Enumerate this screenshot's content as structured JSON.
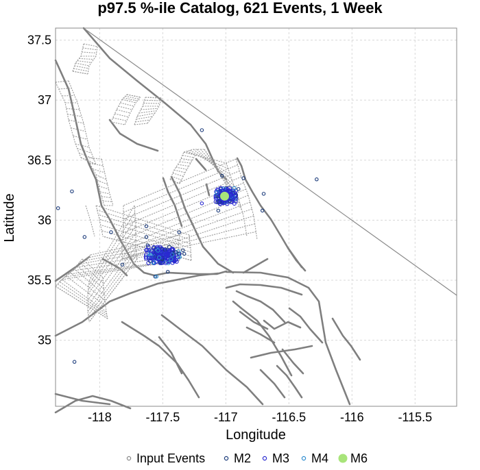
{
  "chart_data": {
    "type": "scatter",
    "title": "p97.5 %-ile Catalog, 621 Events, 1 Week",
    "xlabel": "Longitude",
    "ylabel": "Latitude",
    "xlim": [
      -118.35,
      -115.17
    ],
    "ylim": [
      34.45,
      37.6
    ],
    "x_ticks": [
      -118,
      -117.5,
      -117,
      -116.5,
      -116,
      -115.5
    ],
    "x_tick_labels": [
      "-118",
      "-117.5",
      "-117",
      "-116.5",
      "-116",
      "-115.5"
    ],
    "y_ticks": [
      35,
      35.5,
      36,
      36.5,
      37,
      37.5
    ],
    "y_tick_labels": [
      "35",
      "35.5",
      "36",
      "36.5",
      "37",
      "37.5"
    ],
    "grid": true,
    "legend_position": "bottom",
    "legend": [
      {
        "name": "Input Events",
        "color": "#888888",
        "style": "hollow"
      },
      {
        "name": "M2",
        "color": "#1a3a7a",
        "style": "hollow"
      },
      {
        "name": "M3",
        "color": "#2a2ad0",
        "style": "hollow"
      },
      {
        "name": "M4",
        "color": "#2e8ccf",
        "style": "hollow"
      },
      {
        "name": "M6",
        "color": "#a8e47a",
        "style": "filled"
      }
    ],
    "clusters": [
      {
        "name": "M3",
        "center": [
          -117.5,
          35.71
        ],
        "spread": [
          0.1,
          0.05
        ],
        "count": 260
      },
      {
        "name": "M3",
        "center": [
          -117.0,
          36.2
        ],
        "spread": [
          0.06,
          0.05
        ],
        "count": 220
      }
    ],
    "events": [
      {
        "series": "M6",
        "x": -117.01,
        "y": 36.2
      },
      {
        "series": "M2",
        "x": -118.22,
        "y": 36.24
      },
      {
        "series": "M2",
        "x": -118.33,
        "y": 36.1
      },
      {
        "series": "M2",
        "x": -118.12,
        "y": 35.86
      },
      {
        "series": "M2",
        "x": -117.91,
        "y": 35.9
      },
      {
        "series": "M2",
        "x": -117.82,
        "y": 35.63
      },
      {
        "series": "M2",
        "x": -117.63,
        "y": 35.95
      },
      {
        "series": "M2",
        "x": -117.63,
        "y": 35.86
      },
      {
        "series": "M2",
        "x": -117.62,
        "y": 35.79
      },
      {
        "series": "M2",
        "x": -117.37,
        "y": 35.9
      },
      {
        "series": "M2",
        "x": -117.19,
        "y": 36.75
      },
      {
        "series": "M2",
        "x": -117.03,
        "y": 36.37
      },
      {
        "series": "M2",
        "x": -116.86,
        "y": 36.35
      },
      {
        "series": "M2",
        "x": -116.7,
        "y": 36.22
      },
      {
        "series": "M2",
        "x": -116.71,
        "y": 36.08
      },
      {
        "series": "M2",
        "x": -116.9,
        "y": 36.26
      },
      {
        "series": "M2",
        "x": -116.28,
        "y": 36.34
      },
      {
        "series": "M2",
        "x": -117.06,
        "y": 36.08
      },
      {
        "series": "M2",
        "x": -117.56,
        "y": 35.53
      },
      {
        "series": "M2",
        "x": -117.33,
        "y": 35.72
      },
      {
        "series": "M2",
        "x": -117.34,
        "y": 35.75
      },
      {
        "series": "M2",
        "x": -117.46,
        "y": 35.57
      },
      {
        "series": "M2",
        "x": -118.2,
        "y": 34.82
      },
      {
        "series": "M4",
        "x": -117.55,
        "y": 35.53
      },
      {
        "series": "M3",
        "x": -117.19,
        "y": 36.14
      }
    ]
  }
}
